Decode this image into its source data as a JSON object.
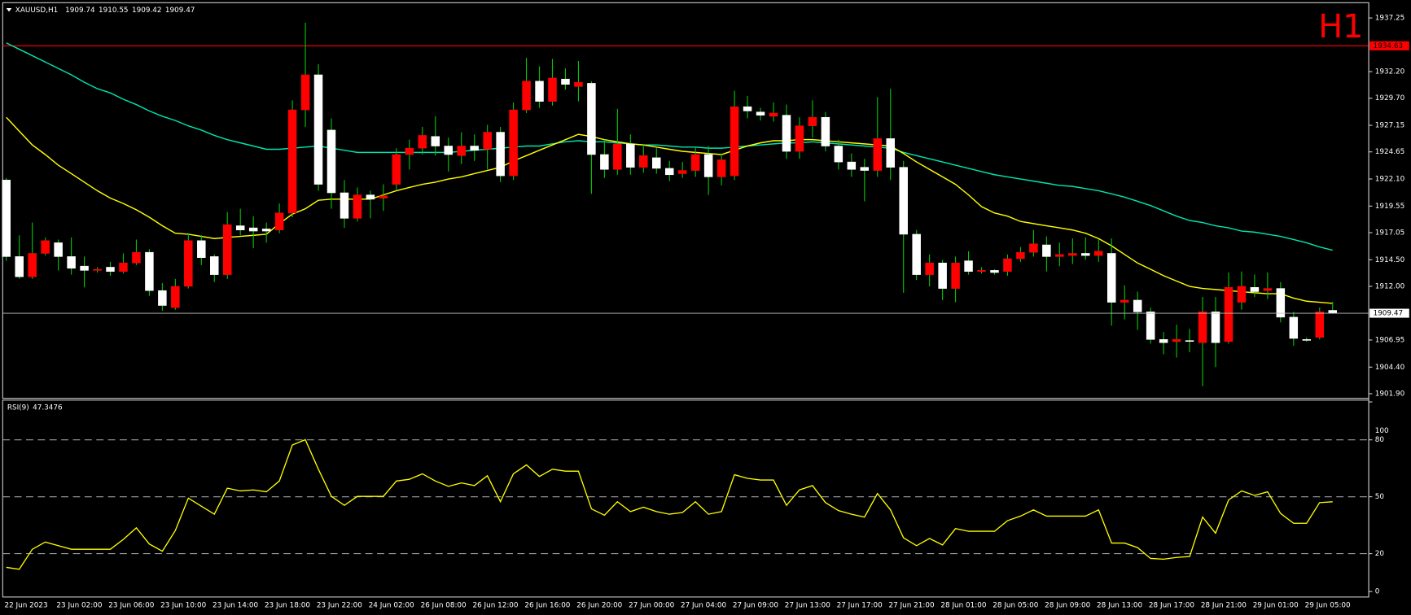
{
  "chart_data": [
    {
      "type": "candlestick",
      "title": "XAUUSD,H1",
      "timeframe": "H1",
      "categories": [
        "22 Jun 2023",
        null,
        null,
        null,
        "23 Jun 02:00",
        null,
        null,
        null,
        "23 Jun 06:00",
        null,
        null,
        null,
        "23 Jun 10:00",
        null,
        null,
        null,
        "23 Jun 14:00",
        null,
        null,
        null,
        "23 Jun 18:00",
        null,
        null,
        null,
        "23 Jun 22:00",
        null,
        null,
        null,
        "24 Jun 02:00",
        null,
        null,
        null,
        "26 Jun 08:00",
        null,
        null,
        null,
        "26 Jun 12:00",
        null,
        null,
        null,
        "26 Jun 16:00",
        null,
        null,
        null,
        "26 Jun 20:00",
        null,
        null,
        null,
        "27 Jun 00:00",
        null,
        null,
        null,
        "27 Jun 04:00",
        null,
        null,
        null,
        "27 Jun 09:00",
        null,
        null,
        null,
        "27 Jun 13:00",
        null,
        null,
        null,
        "27 Jun 17:00",
        null,
        null,
        null,
        "27 Jun 21:00",
        null,
        null,
        null,
        "28 Jun 01:00",
        null,
        null,
        null,
        "28 Jun 05:00",
        null,
        null,
        null,
        "28 Jun 09:00",
        null,
        null,
        null,
        "28 Jun 13:00",
        null,
        null,
        null,
        "28 Jun 17:00",
        null,
        null,
        null,
        "28 Jun 21:00",
        null,
        null,
        null,
        "29 Jun 01:00",
        null,
        null,
        null,
        "29 Jun 05:00",
        null,
        null
      ],
      "open": [
        1922.0,
        1914.8,
        1912.9,
        1915.1,
        1916.1,
        1914.8,
        1913.9,
        1913.5,
        1913.8,
        1913.4,
        1914.2,
        1915.2,
        1911.6,
        1910.0,
        1912.0,
        1916.3,
        1914.8,
        1913.1,
        1917.7,
        1917.5,
        1917.4,
        1917.3,
        1918.9,
        1928.6,
        1931.9,
        1926.7,
        1920.8,
        1918.4,
        1920.6,
        1920.3,
        1921.6,
        1924.4,
        1925.0,
        1926.1,
        1925.2,
        1924.3,
        1925.2,
        1924.9,
        1926.5,
        1922.4,
        1928.6,
        1931.3,
        1929.4,
        1931.5,
        1930.8,
        1931.1,
        1924.4,
        1923.0,
        1925.4,
        1923.2,
        1924.1,
        1923.1,
        1922.6,
        1922.9,
        1924.4,
        1922.3,
        1922.4,
        1928.9,
        1928.4,
        1928.0,
        1928.1,
        1924.7,
        1927.1,
        1927.9,
        1925.2,
        1923.7,
        1923.2,
        1922.9,
        1925.9,
        1923.2,
        1916.9,
        1913.1,
        1914.2,
        1911.8,
        1914.4,
        1913.4,
        1913.5,
        1913.4,
        1914.6,
        1915.2,
        1915.9,
        1914.8,
        1914.9,
        1915.1,
        1914.9,
        1915.1,
        1910.5,
        1910.7,
        1909.6,
        1907.0,
        1906.8,
        1906.9,
        1906.7,
        1909.6,
        1906.8,
        1910.5,
        1911.9,
        1911.6,
        1911.8,
        1909.1,
        1907.0,
        1907.2,
        1909.74
      ],
      "high": [
        1922.2,
        1916.8,
        1918.0,
        1916.6,
        1916.4,
        1916.6,
        1914.8,
        1913.8,
        1914.3,
        1915.1,
        1916.4,
        1915.5,
        1912.3,
        1912.7,
        1917.0,
        1916.8,
        1915.0,
        1919.0,
        1919.3,
        1918.6,
        1918.0,
        1919.8,
        1929.5,
        1936.8,
        1932.9,
        1927.8,
        1922.0,
        1921.3,
        1921.0,
        1921.6,
        1925.0,
        1925.8,
        1927.0,
        1928.0,
        1926.0,
        1926.5,
        1926.3,
        1927.2,
        1927.0,
        1929.3,
        1933.5,
        1932.7,
        1933.4,
        1932.5,
        1933.2,
        1931.3,
        1925.8,
        1928.7,
        1926.3,
        1925.3,
        1925.0,
        1923.8,
        1923.7,
        1925.1,
        1925.2,
        1924.5,
        1930.4,
        1929.9,
        1928.8,
        1929.3,
        1929.1,
        1927.9,
        1929.5,
        1928.4,
        1925.8,
        1924.5,
        1924.0,
        1929.8,
        1930.6,
        1923.8,
        1917.3,
        1915.0,
        1914.5,
        1914.8,
        1915.3,
        1913.8,
        1913.6,
        1915.0,
        1915.7,
        1917.3,
        1916.7,
        1916.1,
        1916.5,
        1916.6,
        1916.4,
        1916.5,
        1912.1,
        1911.5,
        1910.0,
        1907.7,
        1908.4,
        1908.0,
        1911.0,
        1911.0,
        1913.3,
        1913.4,
        1913.1,
        1913.3,
        1912.4,
        1909.6,
        1907.2,
        1910.0,
        1910.55
      ],
      "low": [
        1914.4,
        1912.7,
        1912.7,
        1914.9,
        1913.5,
        1913.1,
        1911.9,
        1913.3,
        1913.0,
        1913.2,
        1914.0,
        1911.1,
        1909.7,
        1909.8,
        1911.8,
        1914.0,
        1912.4,
        1912.7,
        1916.8,
        1915.6,
        1916.1,
        1917.0,
        1918.5,
        1927.0,
        1921.0,
        1919.3,
        1917.5,
        1918.1,
        1918.4,
        1919.1,
        1921.1,
        1923.0,
        1924.4,
        1924.3,
        1922.8,
        1923.5,
        1923.8,
        1923.0,
        1921.8,
        1922.0,
        1928.3,
        1928.8,
        1929.0,
        1930.5,
        1929.4,
        1920.7,
        1922.2,
        1922.5,
        1922.5,
        1922.7,
        1922.6,
        1921.9,
        1922.2,
        1922.3,
        1920.6,
        1921.5,
        1922.0,
        1927.8,
        1927.6,
        1927.5,
        1924.0,
        1924.0,
        1926.0,
        1924.7,
        1923.0,
        1922.3,
        1920.0,
        1922.3,
        1922.0,
        1911.4,
        1912.6,
        1912.0,
        1910.7,
        1910.5,
        1913.1,
        1913.2,
        1913.1,
        1913.0,
        1914.3,
        1914.8,
        1913.4,
        1913.9,
        1914.1,
        1914.5,
        1914.3,
        1908.3,
        1908.9,
        1907.9,
        1906.6,
        1905.6,
        1905.3,
        1905.8,
        1902.6,
        1904.4,
        1906.6,
        1909.8,
        1911.0,
        1910.8,
        1908.6,
        1906.4,
        1906.8,
        1907.0,
        1909.42
      ],
      "close": [
        1914.8,
        1912.9,
        1915.1,
        1916.3,
        1914.8,
        1913.7,
        1913.5,
        1913.6,
        1913.4,
        1914.2,
        1915.2,
        1911.6,
        1910.2,
        1912.0,
        1916.3,
        1914.7,
        1913.1,
        1917.8,
        1917.3,
        1917.2,
        1917.2,
        1918.9,
        1928.6,
        1931.9,
        1921.6,
        1920.8,
        1918.4,
        1920.6,
        1920.2,
        1920.5,
        1924.4,
        1925.0,
        1926.2,
        1925.2,
        1924.4,
        1925.2,
        1924.8,
        1926.5,
        1922.4,
        1928.6,
        1931.3,
        1929.4,
        1931.6,
        1931.0,
        1931.2,
        1924.4,
        1923.0,
        1925.4,
        1923.2,
        1924.3,
        1923.1,
        1922.5,
        1922.9,
        1924.4,
        1922.3,
        1923.9,
        1928.9,
        1928.5,
        1928.1,
        1928.3,
        1924.7,
        1927.1,
        1927.9,
        1925.2,
        1923.7,
        1923.0,
        1922.9,
        1925.9,
        1923.2,
        1916.9,
        1913.1,
        1914.2,
        1911.8,
        1914.2,
        1913.4,
        1913.5,
        1913.3,
        1914.6,
        1915.2,
        1916.0,
        1914.8,
        1915.0,
        1915.1,
        1914.9,
        1915.3,
        1910.5,
        1910.7,
        1909.6,
        1907.0,
        1906.7,
        1907.0,
        1906.9,
        1909.6,
        1906.7,
        1911.9,
        1912.0,
        1911.5,
        1911.8,
        1909.1,
        1907.1,
        1907.0,
        1909.6,
        1909.47
      ],
      "up_color": "#ff0000",
      "down_color": "#ffffff",
      "wick_color": "#00c800",
      "lines": [
        {
          "color": "#00e5b0",
          "values": [
            1934.9,
            1934.3,
            1933.7,
            1933.1,
            1932.5,
            1931.9,
            1931.2,
            1930.6,
            1930.2,
            1929.6,
            1929.1,
            1928.5,
            1928.0,
            1927.6,
            1927.1,
            1926.7,
            1926.2,
            1925.8,
            1925.5,
            1925.2,
            1924.9,
            1924.9,
            1925.0,
            1925.1,
            1925.2,
            1925.0,
            1924.8,
            1924.6,
            1924.6,
            1924.6,
            1924.6,
            1924.6,
            1924.6,
            1924.6,
            1924.6,
            1924.7,
            1924.8,
            1924.9,
            1925.0,
            1925.1,
            1925.2,
            1925.2,
            1925.4,
            1925.6,
            1925.7,
            1925.6,
            1925.6,
            1925.5,
            1925.4,
            1925.3,
            1925.3,
            1925.2,
            1925.1,
            1925.1,
            1925.0,
            1925.0,
            1925.1,
            1925.2,
            1925.3,
            1925.4,
            1925.5,
            1925.5,
            1925.6,
            1925.5,
            1925.4,
            1925.3,
            1925.2,
            1925.1,
            1925.0,
            1924.6,
            1924.3,
            1924.0,
            1923.7,
            1923.4,
            1923.1,
            1922.8,
            1922.5,
            1922.3,
            1922.1,
            1921.9,
            1921.7,
            1921.5,
            1921.4,
            1921.2,
            1921.0,
            1920.7,
            1920.4,
            1920.0,
            1919.6,
            1919.1,
            1918.6,
            1918.2,
            1918.0,
            1917.7,
            1917.5,
            1917.2,
            1917.1,
            1916.9,
            1916.7,
            1916.4,
            1916.1,
            1915.7,
            1915.4
          ]
        },
        {
          "color": "#ffff00",
          "values": [
            1927.9,
            1926.6,
            1925.3,
            1924.4,
            1923.4,
            1922.6,
            1921.8,
            1921.0,
            1920.3,
            1919.8,
            1919.2,
            1918.5,
            1917.7,
            1917.0,
            1916.9,
            1916.7,
            1916.5,
            1916.6,
            1916.7,
            1916.8,
            1916.9,
            1917.9,
            1918.8,
            1919.3,
            1920.1,
            1920.2,
            1920.2,
            1920.2,
            1920.2,
            1920.6,
            1921.0,
            1921.3,
            1921.6,
            1921.8,
            1922.1,
            1922.3,
            1922.6,
            1922.9,
            1923.2,
            1923.8,
            1924.3,
            1924.8,
            1925.3,
            1925.8,
            1926.3,
            1926.1,
            1925.8,
            1925.6,
            1925.4,
            1925.3,
            1925.1,
            1924.9,
            1924.7,
            1924.6,
            1924.5,
            1924.4,
            1924.8,
            1925.2,
            1925.5,
            1925.7,
            1925.7,
            1925.8,
            1925.8,
            1925.7,
            1925.6,
            1925.5,
            1925.4,
            1925.3,
            1925.2,
            1924.5,
            1923.7,
            1923.0,
            1922.3,
            1921.6,
            1920.6,
            1919.5,
            1918.9,
            1918.6,
            1918.1,
            1917.9,
            1917.7,
            1917.5,
            1917.3,
            1917.0,
            1916.5,
            1915.8,
            1915.0,
            1914.2,
            1913.6,
            1913.0,
            1912.5,
            1912.0,
            1911.8,
            1911.7,
            1911.6,
            1911.5,
            1911.4,
            1911.3,
            1911.3,
            1910.9,
            1910.6,
            1910.5,
            1910.4
          ]
        }
      ],
      "levels": [
        {
          "value": 1934.63,
          "color": "#ff0000"
        }
      ],
      "ylim": [
        1901.55,
        1938.6
      ],
      "yticks": [
        1937.25,
        {
          "value": 1932.2,
          "label": "1932.20"
        },
        {
          "value": 1929.7,
          "label": "1929.70"
        },
        1927.15,
        1924.65,
        {
          "value": 1922.1,
          "label": "1922.10"
        },
        1919.55,
        1917.05,
        {
          "value": 1914.5,
          "label": "1914.50"
        },
        {
          "value": 1912,
          "label": "1912.00"
        },
        1906.95,
        {
          "value": 1904.4,
          "label": "1904.40"
        },
        {
          "value": 1901.9,
          "label": "1901.90"
        }
      ]
    },
    {
      "type": "line",
      "title": "RSI(9)",
      "color": "#ffff00",
      "values": [
        12.8,
        11.8,
        22.3,
        26.1,
        24.2,
        22.3,
        22.3,
        22.3,
        22.3,
        27.5,
        33.6,
        25.1,
        21.3,
        32.2,
        49.3,
        45.0,
        40.8,
        54.5,
        53.1,
        53.6,
        52.6,
        58.3,
        77.3,
        80.1,
        64.5,
        50.2,
        45.5,
        50.2,
        50.2,
        50.2,
        58.3,
        59.2,
        62.1,
        58.3,
        55.5,
        57.3,
        55.9,
        61.1,
        47.4,
        62.1,
        66.8,
        60.7,
        64.5,
        63.5,
        63.5,
        43.6,
        40.3,
        47.4,
        42.2,
        44.5,
        42.2,
        40.8,
        41.7,
        47.4,
        40.8,
        42.2,
        61.6,
        59.7,
        58.8,
        58.8,
        45.5,
        53.6,
        55.9,
        46.9,
        42.7,
        40.8,
        39.3,
        51.7,
        43.1,
        28.4,
        24.2,
        28.0,
        24.6,
        33.2,
        31.8,
        31.8,
        31.8,
        37.4,
        39.8,
        43.1,
        39.8,
        39.8,
        39.8,
        39.8,
        43.1,
        25.6,
        25.6,
        23.2,
        17.5,
        17.1,
        18.0,
        18.5,
        39.3,
        30.8,
        48.3,
        53.1,
        50.7,
        52.6,
        41.2,
        36.0,
        36.0,
        46.9,
        47.3476
      ],
      "ylim": [
        0,
        100
      ],
      "yticks": [
        0,
        20,
        50,
        80,
        100
      ],
      "levels": [
        20,
        50,
        80
      ]
    }
  ]
}
